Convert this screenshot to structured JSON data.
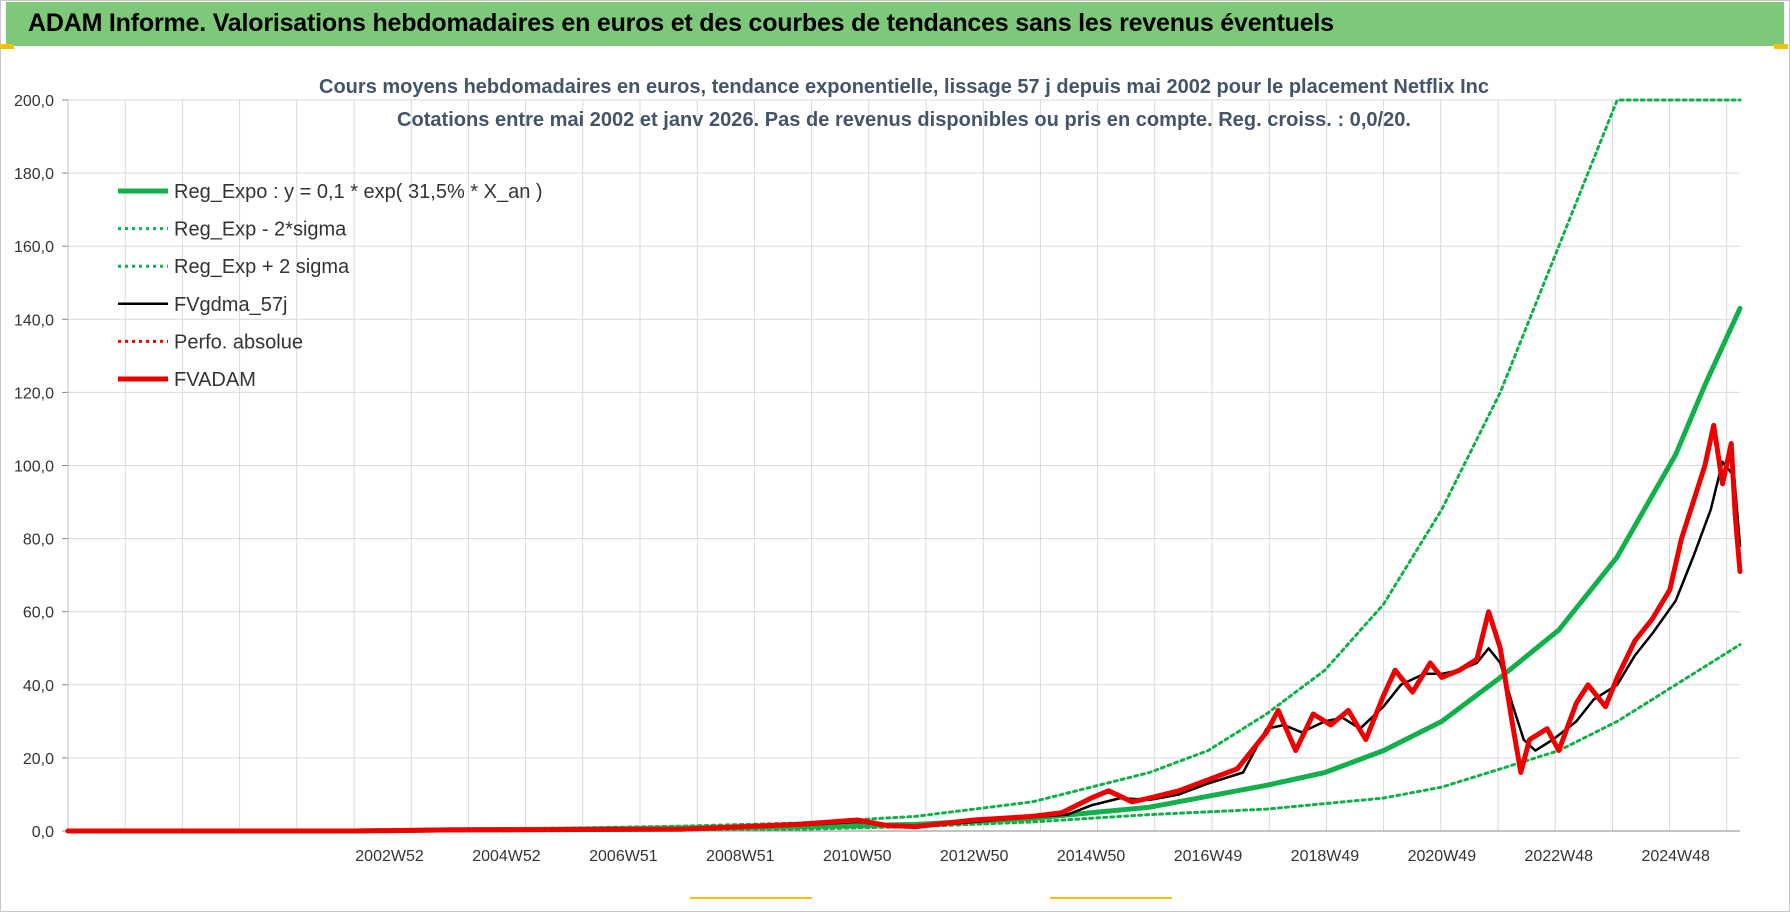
{
  "banner": {
    "title": "ADAM Informe. Valorisations hebdomadaires en euros et des courbes de tendances sans les revenus éventuels"
  },
  "colors": {
    "banner_bg": "#7ec87a",
    "trend_green": "#12b04a",
    "smooth_black": "#000000",
    "adam_red": "#ee0000",
    "grid": "#d9d9d9"
  },
  "chart_data": {
    "type": "line",
    "title": "Cours moyens hebdomadaires en euros, tendance exponentielle, lissage 57 j depuis mai 2002 pour le placement Netflix Inc",
    "subtitle": "Cotations entre mai 2002 et janv 2026. Pas de revenus disponibles ou pris en compte. Reg. croiss. : 0,0/20.",
    "ylim": [
      0,
      200
    ],
    "y_ticks": [
      "0,0",
      "20,0",
      "40,0",
      "60,0",
      "80,0",
      "100,0",
      "120,0",
      "140,0",
      "160,0",
      "180,0",
      "200,0"
    ],
    "x_tick_labels": [
      "2002W52",
      "2004W52",
      "2006W51",
      "2008W51",
      "2010W50",
      "2012W50",
      "2014W50",
      "2016W49",
      "2018W49",
      "2020W49",
      "2022W48",
      "2024W48"
    ],
    "x_tick_positions": [
      2003.0,
      2005.0,
      2007.0,
      2009.0,
      2011.0,
      2013.0,
      2015.0,
      2017.0,
      2019.0,
      2021.0,
      2023.0,
      2025.0
    ],
    "xlim": [
      1997.5,
      2026.1
    ],
    "grid": true,
    "legend": "top-left",
    "series": [
      {
        "name": "Reg_Expo : y = 0,1 * exp( 31,5% *  X_an )",
        "style": "solid-thick",
        "color": "#12b04a",
        "points": [
          [
            1997.5,
            0
          ],
          [
            2002.4,
            0
          ],
          [
            2004,
            0.3
          ],
          [
            2006,
            0.5
          ],
          [
            2008,
            0.8
          ],
          [
            2010,
            1.2
          ],
          [
            2012,
            1.8
          ],
          [
            2014,
            3.5
          ],
          [
            2016,
            6.5
          ],
          [
            2018,
            12.5
          ],
          [
            2019,
            16
          ],
          [
            2020,
            22
          ],
          [
            2021,
            30
          ],
          [
            2022,
            42
          ],
          [
            2023,
            55
          ],
          [
            2024,
            75
          ],
          [
            2025,
            103
          ],
          [
            2025.5,
            122
          ],
          [
            2026.1,
            143
          ]
        ]
      },
      {
        "name": "Reg_Exp - 2*sigma",
        "style": "dotted",
        "color": "#12b04a",
        "points": [
          [
            1997.5,
            0
          ],
          [
            2002.4,
            0
          ],
          [
            2006,
            0.1
          ],
          [
            2010,
            0.5
          ],
          [
            2012,
            1.2
          ],
          [
            2014,
            2.5
          ],
          [
            2016,
            4.5
          ],
          [
            2018,
            6
          ],
          [
            2020,
            9
          ],
          [
            2021,
            12
          ],
          [
            2022,
            17
          ],
          [
            2023,
            22
          ],
          [
            2024,
            30
          ],
          [
            2025,
            40
          ],
          [
            2026.1,
            51
          ]
        ]
      },
      {
        "name": "Reg_Exp + 2 sigma",
        "style": "dotted",
        "color": "#12b04a",
        "points": [
          [
            1997.5,
            0
          ],
          [
            2002.4,
            0
          ],
          [
            2006,
            0.8
          ],
          [
            2008,
            1.3
          ],
          [
            2010,
            2.2
          ],
          [
            2012,
            4
          ],
          [
            2014,
            8
          ],
          [
            2016,
            16
          ],
          [
            2017,
            22
          ],
          [
            2018,
            32
          ],
          [
            2019,
            44
          ],
          [
            2020,
            62
          ],
          [
            2021,
            88
          ],
          [
            2022,
            120
          ],
          [
            2023,
            160
          ],
          [
            2024,
            200
          ],
          [
            2026.1,
            200
          ]
        ]
      },
      {
        "name": "FVgdma_57j",
        "style": "solid",
        "color": "#000000",
        "points": [
          [
            1997.5,
            0
          ],
          [
            2002.4,
            0
          ],
          [
            2004,
            0.3
          ],
          [
            2008,
            0.4
          ],
          [
            2010,
            1.5
          ],
          [
            2011,
            2.5
          ],
          [
            2011.6,
            1.5
          ],
          [
            2012,
            1.0
          ],
          [
            2013,
            2.5
          ],
          [
            2014,
            3.8
          ],
          [
            2014.6,
            4.5
          ],
          [
            2015,
            7
          ],
          [
            2015.5,
            9
          ],
          [
            2016,
            8.5
          ],
          [
            2016.5,
            10
          ],
          [
            2017,
            13
          ],
          [
            2017.6,
            16
          ],
          [
            2018,
            28
          ],
          [
            2018.3,
            29
          ],
          [
            2018.6,
            27
          ],
          [
            2019,
            30
          ],
          [
            2019.3,
            31
          ],
          [
            2019.6,
            28
          ],
          [
            2020,
            34
          ],
          [
            2020.3,
            40
          ],
          [
            2020.7,
            43
          ],
          [
            2021,
            43
          ],
          [
            2021.3,
            44
          ],
          [
            2021.6,
            46
          ],
          [
            2021.8,
            50
          ],
          [
            2022,
            46
          ],
          [
            2022.2,
            35
          ],
          [
            2022.4,
            25
          ],
          [
            2022.6,
            22
          ],
          [
            2022.9,
            25
          ],
          [
            2023.3,
            30
          ],
          [
            2023.6,
            36
          ],
          [
            2024,
            40
          ],
          [
            2024.3,
            48
          ],
          [
            2024.6,
            54
          ],
          [
            2025,
            63
          ],
          [
            2025.3,
            75
          ],
          [
            2025.6,
            88
          ],
          [
            2025.8,
            101
          ],
          [
            2026,
            97
          ],
          [
            2026.1,
            78
          ]
        ]
      },
      {
        "name": "Perfo. absolue",
        "style": "dotted",
        "color": "#ee0000",
        "points": []
      },
      {
        "name": "FVADAM",
        "style": "solid-thick",
        "color": "#ee0000",
        "points": [
          [
            1997.5,
            0
          ],
          [
            2002.4,
            0
          ],
          [
            2004,
            0.3
          ],
          [
            2008,
            0.5
          ],
          [
            2010,
            1.8
          ],
          [
            2011,
            3
          ],
          [
            2011.5,
            1.5
          ],
          [
            2012,
            1.2
          ],
          [
            2013,
            3
          ],
          [
            2014,
            4
          ],
          [
            2014.5,
            5
          ],
          [
            2015,
            9
          ],
          [
            2015.3,
            11
          ],
          [
            2015.7,
            8
          ],
          [
            2016,
            9
          ],
          [
            2016.5,
            11
          ],
          [
            2017,
            14
          ],
          [
            2017.5,
            17
          ],
          [
            2018,
            27
          ],
          [
            2018.2,
            33
          ],
          [
            2018.5,
            22
          ],
          [
            2018.8,
            32
          ],
          [
            2019.1,
            29
          ],
          [
            2019.4,
            33
          ],
          [
            2019.7,
            25
          ],
          [
            2020,
            37
          ],
          [
            2020.2,
            44
          ],
          [
            2020.5,
            38
          ],
          [
            2020.8,
            46
          ],
          [
            2021,
            42
          ],
          [
            2021.3,
            44
          ],
          [
            2021.6,
            47
          ],
          [
            2021.8,
            60
          ],
          [
            2022,
            50
          ],
          [
            2022.2,
            30
          ],
          [
            2022.35,
            16
          ],
          [
            2022.5,
            25
          ],
          [
            2022.8,
            28
          ],
          [
            2023,
            22
          ],
          [
            2023.3,
            35
          ],
          [
            2023.5,
            40
          ],
          [
            2023.8,
            34
          ],
          [
            2024,
            42
          ],
          [
            2024.3,
            52
          ],
          [
            2024.6,
            58
          ],
          [
            2024.9,
            66
          ],
          [
            2025.1,
            80
          ],
          [
            2025.3,
            90
          ],
          [
            2025.5,
            100
          ],
          [
            2025.65,
            111
          ],
          [
            2025.8,
            95
          ],
          [
            2025.95,
            106
          ],
          [
            2026.02,
            86
          ],
          [
            2026.1,
            71
          ]
        ]
      }
    ]
  }
}
